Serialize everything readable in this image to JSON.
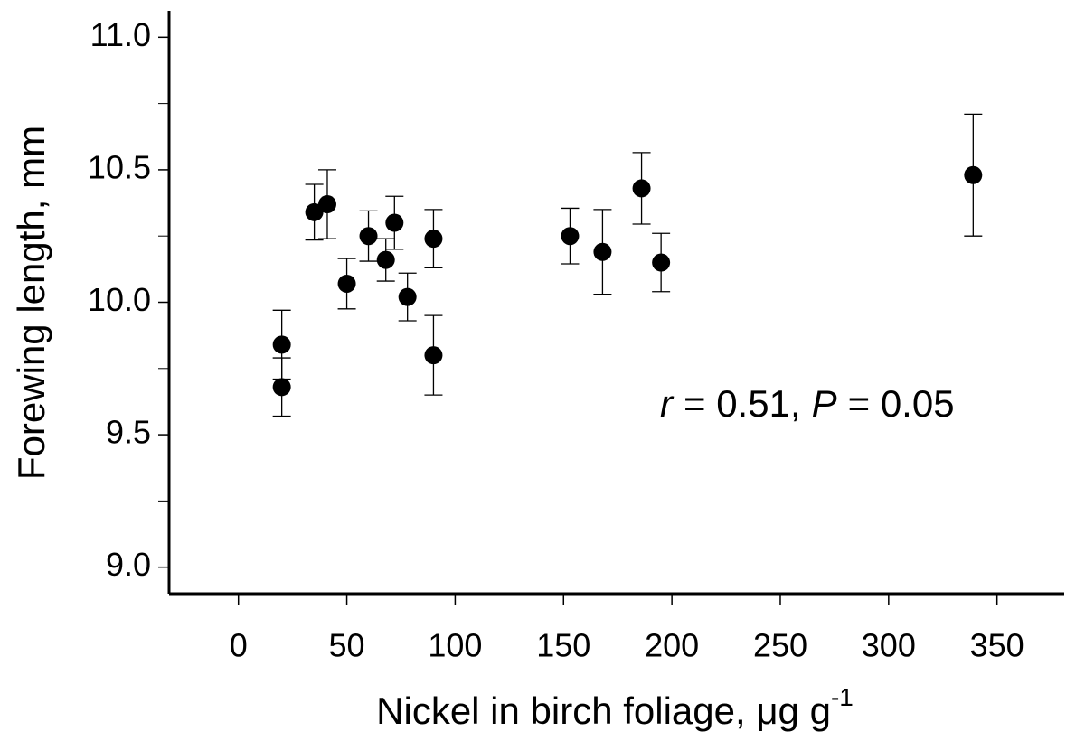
{
  "chart_data": {
    "type": "scatter",
    "xlabel": "Nickel in birch foliage, μg g",
    "xlabel_sup": "-1",
    "ylabel": "Forewing length, mm",
    "annotation_parts": [
      "r",
      "= 0.51,",
      "P",
      "= 0.05"
    ],
    "series": [
      {
        "color": "#000000",
        "x": [
          20,
          20,
          35,
          41,
          50,
          60,
          68,
          72,
          78,
          90,
          90,
          153,
          168,
          186,
          195,
          339
        ],
        "values": [
          9.84,
          9.68,
          10.34,
          10.37,
          10.07,
          10.25,
          10.16,
          10.3,
          10.02,
          10.24,
          9.8,
          10.25,
          10.19,
          10.43,
          10.15,
          10.48
        ],
        "errors": [
          0.13,
          0.11,
          0.105,
          0.13,
          0.095,
          0.095,
          0.08,
          0.1,
          0.09,
          0.11,
          0.15,
          0.105,
          0.16,
          0.135,
          0.11,
          0.23
        ]
      }
    ],
    "xlim": [
      -32,
      381
    ],
    "ylim": [
      8.9,
      11.1
    ],
    "xticks": [
      0,
      50,
      100,
      150,
      200,
      250,
      300,
      350
    ],
    "yticks": [
      {
        "value": 9,
        "label": "9.0"
      },
      9.5,
      {
        "value": 10,
        "label": "10.0"
      },
      10.5,
      {
        "value": 11,
        "label": "11.0"
      }
    ],
    "yminorticks": [
      9.25,
      9.75,
      10.25,
      10.75
    ]
  }
}
